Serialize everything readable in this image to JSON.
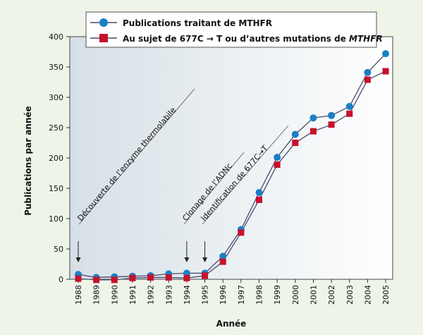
{
  "chart_data": {
    "type": "line",
    "xlabel": "Année",
    "ylabel": "Publications par année",
    "ylim": [
      0,
      400
    ],
    "yticks": [
      0,
      50,
      100,
      150,
      200,
      250,
      300,
      350,
      400
    ],
    "x": [
      "1988",
      "1989",
      "1990",
      "1991",
      "1992",
      "1993",
      "1994",
      "1995",
      "1996",
      "1997",
      "1998",
      "1999",
      "2000",
      "2001",
      "2002",
      "2003",
      "2004",
      "2005"
    ],
    "series": [
      {
        "name": "Publications traitant de MTHFR",
        "color": "#1a7fc4",
        "marker": "circle",
        "values": [
          8,
          3,
          4,
          5,
          6,
          9,
          10,
          10,
          38,
          82,
          143,
          201,
          239,
          266,
          270,
          285,
          341,
          372
        ]
      },
      {
        "name_parts": [
          "Au sujet de 677C ",
          "→",
          " T ou d’autres mutations de ",
          "MTHFR"
        ],
        "color": "#c8102e",
        "marker": "square",
        "values": [
          1,
          -1,
          -1,
          2,
          3,
          3,
          2,
          6,
          29,
          77,
          131,
          189,
          225,
          244,
          255,
          273,
          329,
          343
        ]
      }
    ],
    "legend": {
      "placement": "top"
    },
    "annotations": [
      {
        "text": "Découverte de l’enzyme thermolabile",
        "x": "1988"
      },
      {
        "text": "Clonage de l’ADNc",
        "x": "1994"
      },
      {
        "text": "Identification de 677C→T",
        "x": "1995"
      }
    ]
  }
}
